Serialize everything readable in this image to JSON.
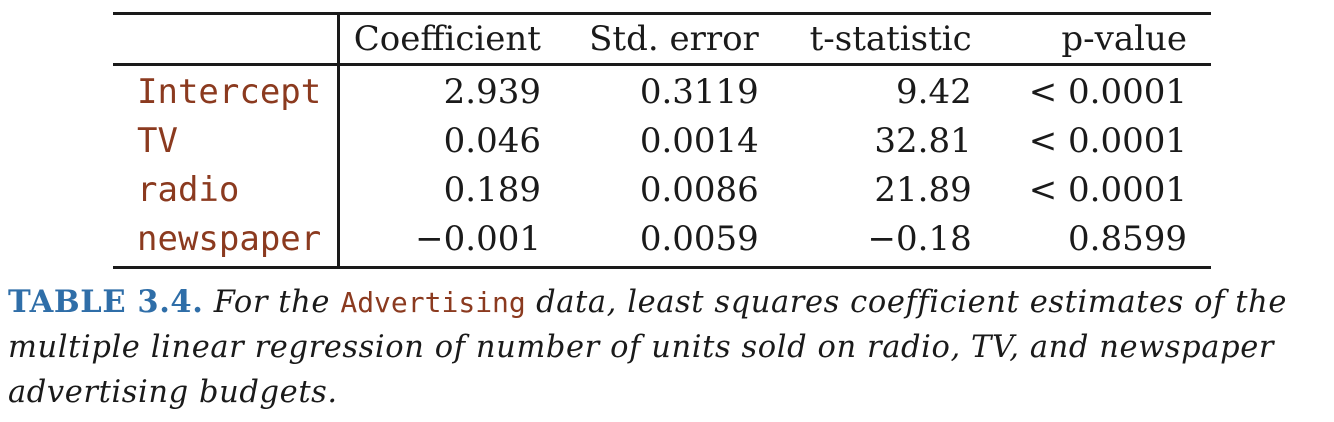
{
  "table": {
    "headers": [
      "",
      "Coefficient",
      "Std. error",
      "t-statistic",
      "p-value"
    ],
    "rows": [
      {
        "label": "Intercept",
        "coefficient": "2.939",
        "std_error": "0.3119",
        "t_statistic": "9.42",
        "p_value": "< 0.0001"
      },
      {
        "label": "TV",
        "coefficient": "0.046",
        "std_error": "0.0014",
        "t_statistic": "32.81",
        "p_value": "< 0.0001"
      },
      {
        "label": "radio",
        "coefficient": "0.189",
        "std_error": "0.0086",
        "t_statistic": "21.89",
        "p_value": "< 0.0001"
      },
      {
        "label": "newspaper",
        "coefficient": "−0.001",
        "std_error": "0.0059",
        "t_statistic": "−0.18",
        "p_value": "0.8599"
      }
    ]
  },
  "caption": {
    "label": "TABLE 3.4.",
    "text_before": " For the ",
    "dataset": "Advertising",
    "text_after": " data, least squares coefficient estimates of the multiple linear regression of number of units sold on radio, TV, and newspaper advertising budgets."
  },
  "colors": {
    "label_color": "#8b3a1f",
    "caption_label_color": "#2f6ea8",
    "text_color": "#1a1a1a"
  }
}
